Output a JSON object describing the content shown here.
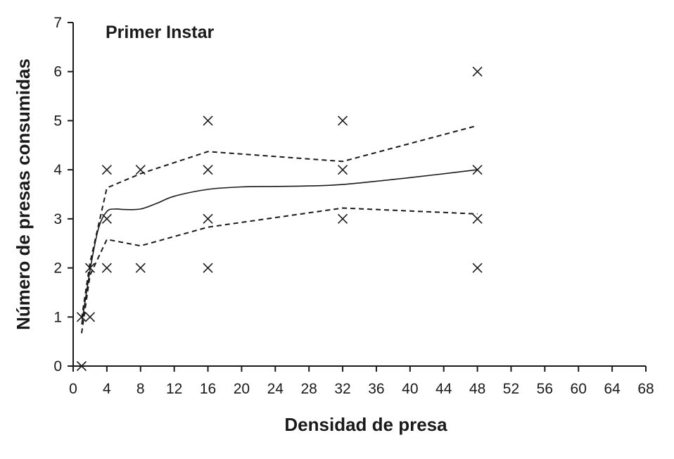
{
  "chart_data": {
    "type": "scatter",
    "title": "Primer Instar",
    "xlabel": "Densidad de presa",
    "ylabel": "Número de presas consumidas",
    "xlim": [
      0,
      68
    ],
    "ylim": [
      0,
      7
    ],
    "xticks": [
      0,
      4,
      8,
      12,
      16,
      20,
      24,
      28,
      32,
      36,
      40,
      44,
      48,
      52,
      56,
      60,
      64,
      68
    ],
    "yticks": [
      0,
      1,
      2,
      3,
      4,
      5,
      6,
      7
    ],
    "grid": false,
    "legend": "none",
    "points": [
      {
        "x": 1,
        "y": 0
      },
      {
        "x": 1,
        "y": 1
      },
      {
        "x": 2,
        "y": 1
      },
      {
        "x": 2,
        "y": 2
      },
      {
        "x": 4,
        "y": 2
      },
      {
        "x": 4,
        "y": 3
      },
      {
        "x": 4,
        "y": 4
      },
      {
        "x": 8,
        "y": 2
      },
      {
        "x": 8,
        "y": 4
      },
      {
        "x": 16,
        "y": 2
      },
      {
        "x": 16,
        "y": 3
      },
      {
        "x": 16,
        "y": 4
      },
      {
        "x": 16,
        "y": 5
      },
      {
        "x": 32,
        "y": 3
      },
      {
        "x": 32,
        "y": 4
      },
      {
        "x": 32,
        "y": 5
      },
      {
        "x": 48,
        "y": 2
      },
      {
        "x": 48,
        "y": 3
      },
      {
        "x": 48,
        "y": 4
      },
      {
        "x": 48,
        "y": 6
      }
    ],
    "fit_curve": {
      "style": "solid",
      "x": [
        1,
        2,
        3,
        4,
        5,
        6,
        8,
        10,
        12,
        16,
        20,
        24,
        28,
        32,
        40,
        48
      ],
      "y": [
        0.85,
        1.95,
        2.8,
        3.15,
        3.2,
        3.19,
        3.2,
        3.32,
        3.46,
        3.6,
        3.65,
        3.66,
        3.67,
        3.7,
        3.84,
        4.0
      ]
    },
    "upper_band": {
      "style": "dashed",
      "x": [
        1,
        2,
        4,
        8,
        16,
        32,
        48
      ],
      "y": [
        0.97,
        2.1,
        3.63,
        3.92,
        4.37,
        4.17,
        4.9
      ]
    },
    "lower_band": {
      "style": "dashed",
      "x": [
        1,
        2,
        4,
        8,
        16,
        32,
        48
      ],
      "y": [
        0.67,
        1.85,
        2.58,
        2.45,
        2.83,
        3.22,
        3.1
      ]
    },
    "colors": {
      "marks": "#1a1a1a",
      "axis": "#1a1a1a",
      "background": "#ffffff"
    }
  }
}
